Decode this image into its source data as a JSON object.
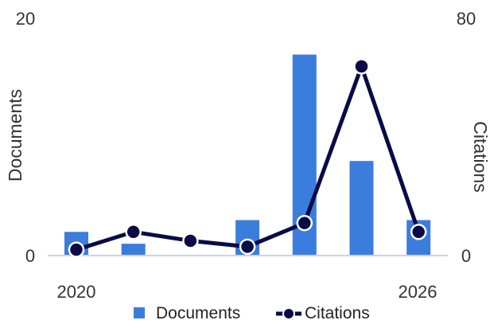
{
  "chart_data": {
    "type": "bar+line",
    "x": [
      2020,
      2021,
      2022,
      2023,
      2024,
      2025,
      2026
    ],
    "x_tick_labels": [
      "2020",
      "2026"
    ],
    "series": [
      {
        "name": "Documents",
        "type": "bar",
        "axis": "left",
        "color": "#3b7ddd",
        "values": [
          2,
          1,
          0,
          3,
          17,
          8,
          3
        ]
      },
      {
        "name": "Citations",
        "type": "line",
        "axis": "right",
        "color": "#0a0a46",
        "values": [
          2,
          8,
          5,
          3,
          11,
          64,
          8
        ]
      }
    ],
    "y_left": {
      "label": "Documents",
      "min": 0,
      "max": 20,
      "tick_labels": [
        "0",
        "20"
      ]
    },
    "y_right": {
      "label": "Citations",
      "min": 0,
      "max": 80,
      "tick_labels": [
        "0",
        "80"
      ]
    },
    "grid": false,
    "legend_position": "bottom"
  }
}
